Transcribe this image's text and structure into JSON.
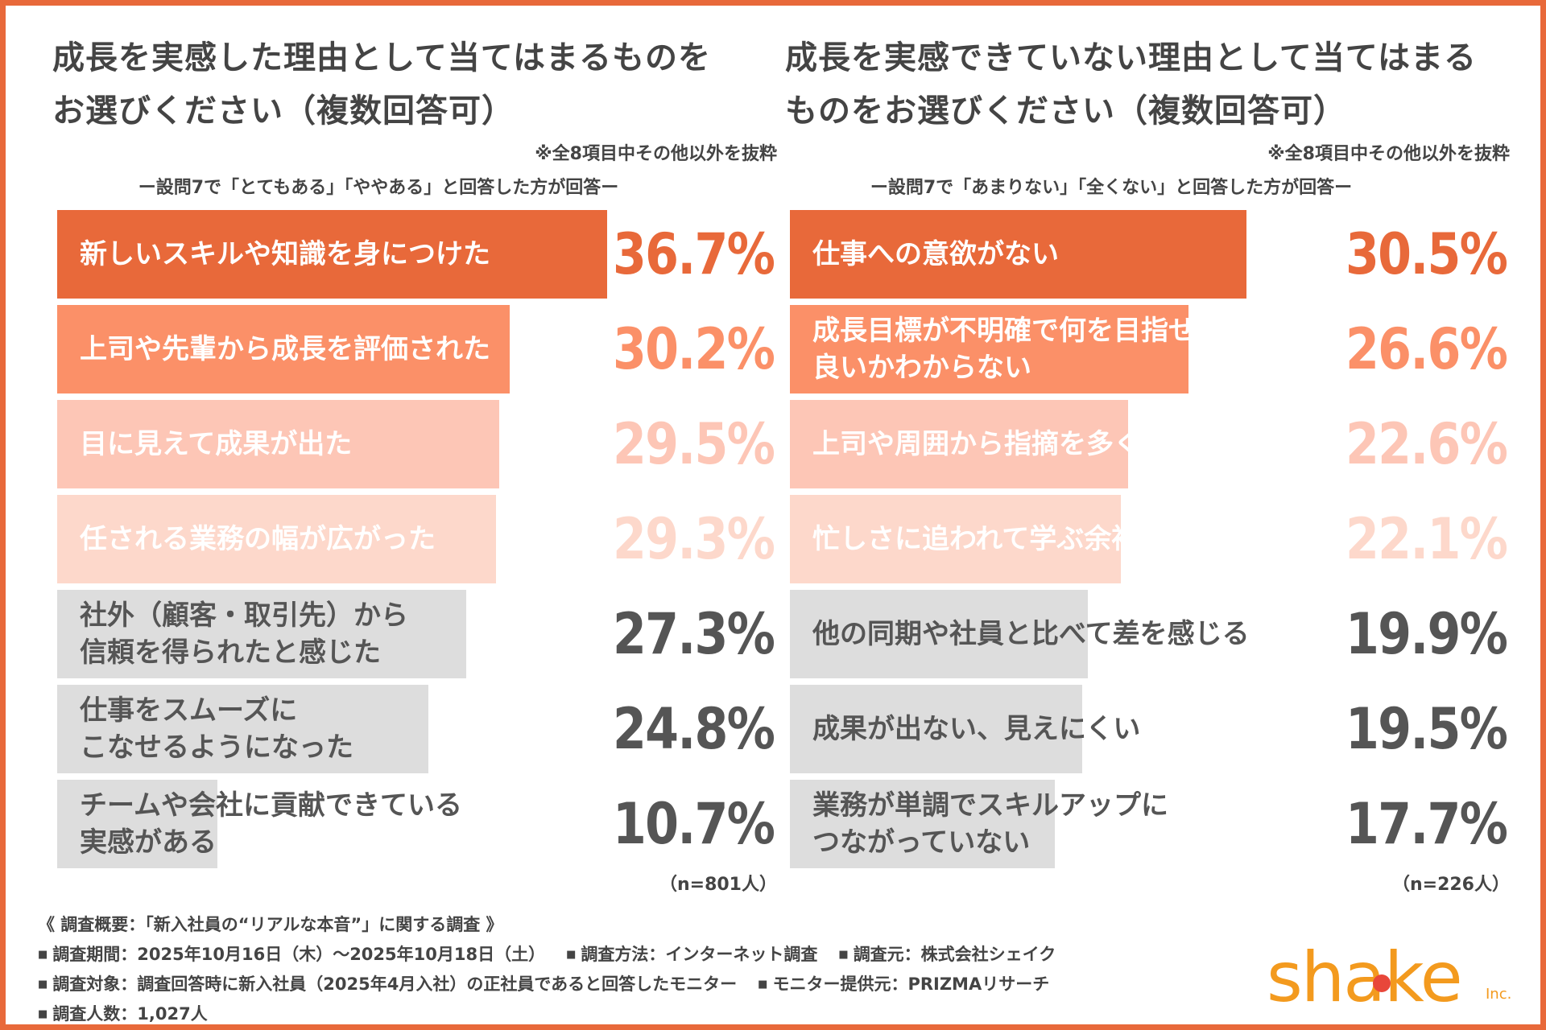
{
  "colors": {
    "frame": "#E8693A",
    "text": "#444444",
    "grey_bar": "#DDDDDD",
    "grey_text": "#555555",
    "logo": "#F39A1E"
  },
  "chart_data": [
    {
      "type": "bar",
      "orientation": "horizontal",
      "title_lines": [
        "成長を実感した理由として当てはまるものを",
        "お選びください（複数回答可）"
      ],
      "note": "※全8項目中その他以外を抜粋",
      "subtitle": "ー設問7で「とてもある」「ややある」と回答した方が回答ー",
      "n_label": "（n=801人）",
      "xlim": [
        0,
        50
      ],
      "categories": [
        [
          "新しいスキルや知識を身につけた"
        ],
        [
          "上司や先輩から成長を評価された"
        ],
        [
          "目に見えて成果が出た"
        ],
        [
          "任される業務の幅が広がった"
        ],
        [
          "社外（顧客・取引先）から",
          "信頼を得られたと感じた"
        ],
        [
          "仕事をスムーズに",
          "こなせるようになった"
        ],
        [
          "チームや会社に貢献できている",
          "実感がある"
        ]
      ],
      "values": [
        36.7,
        30.2,
        29.5,
        29.3,
        27.3,
        24.8,
        10.7
      ],
      "value_labels": [
        "36.7%",
        "30.2%",
        "29.5%",
        "29.3%",
        "27.3%",
        "24.8%",
        "10.7%"
      ],
      "bar_colors": [
        "#E8693A",
        "#FB9068",
        "#FDC6B6",
        "#FDD8CB",
        "#DDDDDD",
        "#DDDDDD",
        "#DDDDDD"
      ],
      "label_colors": [
        "#FFFFFF",
        "#FFFFFF",
        "#FFFFFF",
        "#FFFFFF",
        "#555555",
        "#555555",
        "#555555"
      ],
      "value_colors": [
        "#E8693A",
        "#FB9068",
        "#FDC6B6",
        "#FDD8CB",
        "#555555",
        "#555555",
        "#555555"
      ]
    },
    {
      "type": "bar",
      "orientation": "horizontal",
      "title_lines": [
        "成長を実感できていない理由として当てはまる",
        "ものをお選びください（複数回答可）"
      ],
      "note": "※全8項目中その他以外を抜粋",
      "subtitle": "ー設問7で「あまりない」「全くない」と回答した方が回答ー",
      "n_label": "（n=226人）",
      "xlim": [
        0,
        50
      ],
      "categories": [
        [
          "仕事への意欲がない"
        ],
        [
          "成長目標が不明確で何を目指せば",
          "良いかわからない"
        ],
        [
          "上司や周囲から指摘を多くもらう"
        ],
        [
          "忙しさに追われて学ぶ余裕がない"
        ],
        [
          "他の同期や社員と比べて差を感じる"
        ],
        [
          "成果が出ない、見えにくい"
        ],
        [
          "業務が単調でスキルアップに",
          "つながっていない"
        ]
      ],
      "values": [
        30.5,
        26.6,
        22.6,
        22.1,
        19.9,
        19.5,
        17.7
      ],
      "value_labels": [
        "30.5%",
        "26.6%",
        "22.6%",
        "22.1%",
        "19.9%",
        "19.5%",
        "17.7%"
      ],
      "bar_colors": [
        "#E8693A",
        "#FB9068",
        "#FDC6B6",
        "#FDD8CB",
        "#DDDDDD",
        "#DDDDDD",
        "#DDDDDD"
      ],
      "label_colors": [
        "#FFFFFF",
        "#FFFFFF",
        "#FFFFFF",
        "#FFFFFF",
        "#555555",
        "#555555",
        "#555555"
      ],
      "value_colors": [
        "#E8693A",
        "#FB9068",
        "#FDC6B6",
        "#FDD8CB",
        "#555555",
        "#555555",
        "#555555"
      ]
    }
  ],
  "survey": {
    "heading": "《 調査概要：「新入社員の“リアルな本音”」に関する調査 》",
    "rows": [
      [
        "調査期間：2025年10月16日（木）～2025年10月18日（土）",
        "調査方法：インターネット調査",
        "調査元：株式会社シェイク"
      ],
      [
        "調査対象：調査回答時に新入社員（2025年4月入社）の正社員であると回答したモニター",
        "モニター提供元：PRIZMAリサーチ"
      ],
      [
        "調査人数：1,027人"
      ]
    ]
  },
  "logo": {
    "text": "shake",
    "suffix": "Inc."
  }
}
